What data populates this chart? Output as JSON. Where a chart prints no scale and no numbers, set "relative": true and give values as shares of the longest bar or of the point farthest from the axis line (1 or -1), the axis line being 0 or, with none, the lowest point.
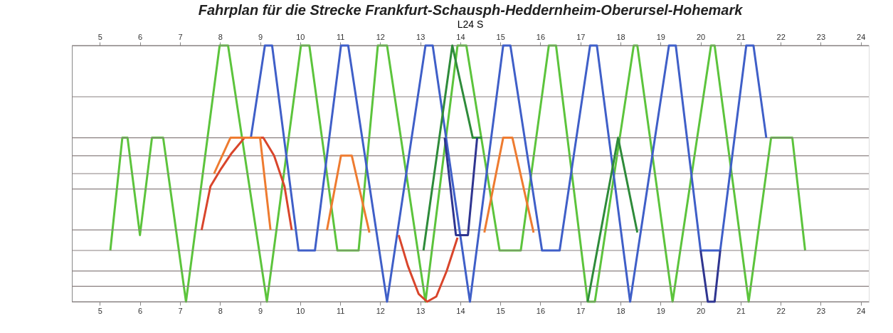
{
  "chart_data": {
    "type": "line",
    "title": "Fahrplan für die Strecke Frankfurt-Schausph-Heddernheim-Oberursel-Hohemark",
    "annotations": [
      "L24",
      "S"
    ],
    "relative": true,
    "grid": false,
    "line_style": "solid",
    "marker": "none",
    "xlim": [
      4.3,
      24.2
    ],
    "xticks": [
      5,
      6,
      7,
      8,
      9,
      10,
      11,
      12,
      13,
      14,
      15,
      16,
      17,
      18,
      19,
      20,
      21,
      22,
      23,
      24
    ],
    "x2lim": [
      4.3,
      24.2
    ],
    "x2ticks": [
      5,
      6,
      7,
      8,
      9,
      10,
      11,
      12,
      13,
      14,
      15,
      16,
      17,
      18,
      19,
      20,
      21,
      22,
      23,
      24
    ],
    "ref_lines": [
      {
        "axis": "y",
        "value": 1,
        "label": null,
        "color": "#8a8080"
      },
      {
        "axis": "y",
        "value": 0.8,
        "label": null,
        "color": "#8a8080"
      },
      {
        "axis": "y",
        "value": 0.64,
        "label": null,
        "color": "#8a8080"
      },
      {
        "axis": "y",
        "value": 0.57,
        "label": null,
        "color": "#8a8080"
      },
      {
        "axis": "y",
        "value": 0.5,
        "label": null,
        "color": "#8a8080"
      },
      {
        "axis": "y",
        "value": 0.44,
        "label": null,
        "color": "#8a8080"
      },
      {
        "axis": "y",
        "value": 0.28,
        "label": null,
        "color": "#8a8080"
      },
      {
        "axis": "y",
        "value": 0.2,
        "label": null,
        "color": "#8a8080"
      },
      {
        "axis": "y",
        "value": 0.12,
        "label": null,
        "color": "#8a8080"
      },
      {
        "axis": "y",
        "value": 0.06,
        "label": null,
        "color": "#8a8080"
      },
      {
        "axis": "y",
        "value": 0,
        "label": null,
        "color": "#8a8080"
      }
    ],
    "series": [
      {
        "color": "#5cc43c",
        "x": [
          5.26,
          5.56,
          5.69,
          6.0,
          6.3,
          6.58,
          7.15,
          7.99,
          8.2,
          9.17,
          10.02,
          10.23,
          10.93,
          11.46,
          11.94,
          12.17,
          13.13,
          13.93,
          14.15,
          14.98,
          15.51,
          16.21,
          16.39,
          17.18,
          17.36,
          18.33,
          18.42,
          19.3,
          20.26,
          20.35,
          21.2,
          21.76,
          22.29,
          22.61
        ],
        "values": [
          0.2,
          0.64,
          0.64,
          0.26,
          0.64,
          0.64,
          0,
          1,
          1,
          0,
          1,
          1,
          0.2,
          0.2,
          1,
          1,
          0,
          1,
          1,
          0.2,
          0.2,
          1,
          1,
          0,
          0,
          1,
          1,
          0,
          1,
          1,
          0,
          0.64,
          0.64,
          0.2
        ]
      },
      {
        "color": "#3f5fc8",
        "x": [
          8.77,
          9.12,
          9.3,
          9.96,
          10.37,
          11.02,
          11.2,
          12.17,
          13.13,
          13.31,
          14.24,
          15.07,
          15.25,
          16.04,
          16.48,
          17.24,
          17.41,
          18.24,
          19.21,
          19.38,
          20.0,
          20.49,
          21.14,
          21.32,
          21.64
        ],
        "values": [
          0.64,
          1,
          1,
          0.2,
          0.2,
          1,
          1,
          0,
          1,
          1,
          0,
          1,
          1,
          0.2,
          0.2,
          1,
          1,
          0,
          1,
          1,
          0.2,
          0.2,
          1,
          1,
          0.64
        ]
      },
      {
        "color": "#2e8b3a",
        "x": [
          13.08,
          13.8,
          14.31,
          14.54
        ],
        "values": [
          0.2,
          1,
          0.64,
          0.64
        ]
      },
      {
        "color": "#2e8b3a",
        "x": [
          17.18,
          17.94,
          18.42
        ],
        "values": [
          0,
          0.64,
          0.27
        ]
      },
      {
        "color": "#2f3590",
        "x": [
          13.61,
          13.89,
          14.19,
          14.42
        ],
        "values": [
          0.64,
          0.26,
          0.26,
          0.64
        ]
      },
      {
        "color": "#2f3590",
        "x": [
          20.0,
          20.18,
          20.35,
          20.49
        ],
        "values": [
          0.2,
          0,
          0,
          0.2
        ]
      },
      {
        "color": "#d9452b",
        "x": [
          7.54,
          7.76,
          8.03,
          8.29,
          8.61,
          9.08,
          9.35,
          9.61,
          9.79
        ],
        "values": [
          0.28,
          0.45,
          0.52,
          0.58,
          0.64,
          0.64,
          0.57,
          0.45,
          0.28
        ]
      },
      {
        "color": "#ee7b30",
        "x": [
          7.85,
          8.26,
          9.0,
          9.26
        ],
        "values": [
          0.5,
          0.64,
          0.64,
          0.28
        ]
      },
      {
        "color": "#ee7b30",
        "x": [
          10.67,
          11.02,
          11.29,
          11.73
        ],
        "values": [
          0.28,
          0.57,
          0.57,
          0.27
        ]
      },
      {
        "color": "#d9452b",
        "x": [
          12.46,
          12.69,
          12.96,
          13.17,
          13.4,
          13.66,
          13.93
        ],
        "values": [
          0.26,
          0.14,
          0.03,
          0,
          0.02,
          0.12,
          0.25
        ]
      },
      {
        "color": "#ee7b30",
        "x": [
          14.6,
          15.07,
          15.3,
          15.83
        ],
        "values": [
          0.27,
          0.64,
          0.64,
          0.27
        ]
      }
    ]
  }
}
